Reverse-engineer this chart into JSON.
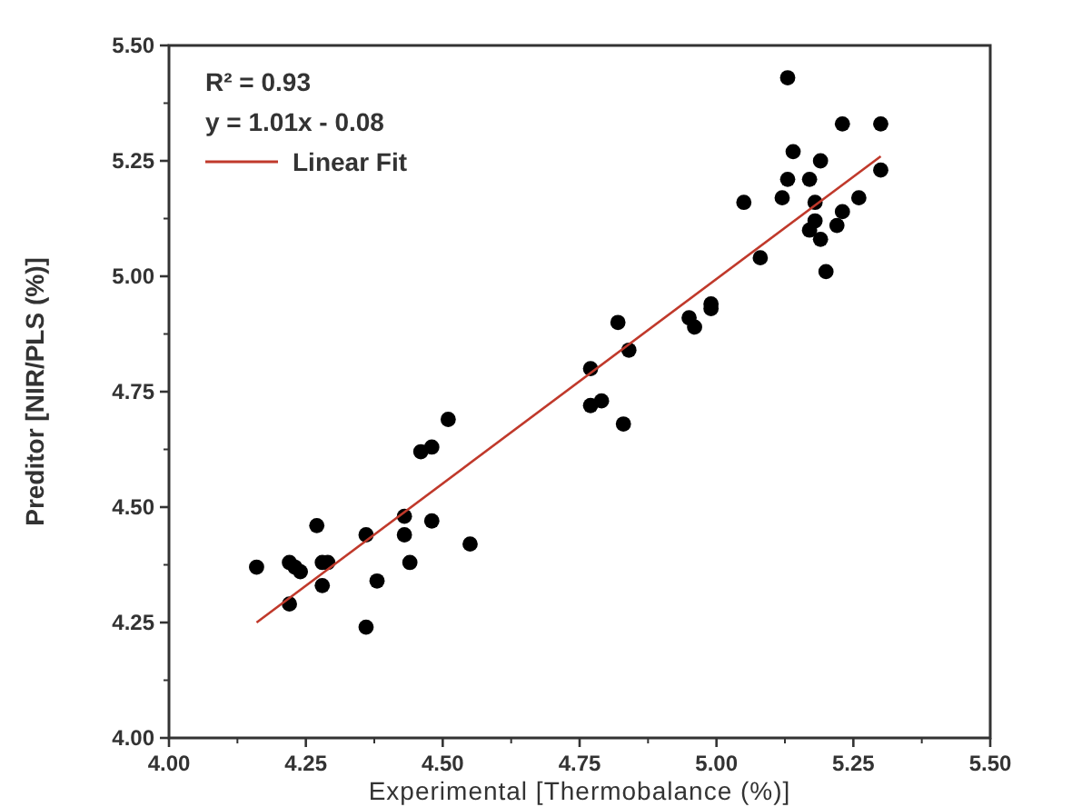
{
  "chart_data": {
    "type": "scatter",
    "xlabel": "Experimental [Thermobalance (%)]",
    "ylabel": "Preditor [NIR/PLS (%)]",
    "xlim": [
      4.0,
      5.5
    ],
    "xticks": [
      {
        "value": 4,
        "label": "4.00"
      },
      {
        "value": 4.25,
        "label": "4.25"
      },
      {
        "value": 4.5,
        "label": "4.50"
      },
      {
        "value": 4.75,
        "label": "4.75"
      },
      {
        "value": 5,
        "label": "5.00"
      },
      {
        "value": 5.25,
        "label": "5.25"
      },
      {
        "value": 5.5,
        "label": "5.50"
      }
    ],
    "ylim": [
      4.0,
      5.5
    ],
    "yticks": [
      {
        "value": 4,
        "label": "4.00"
      },
      {
        "value": 4.25,
        "label": "4.25"
      },
      {
        "value": 4.5,
        "label": "4.50"
      },
      {
        "value": 4.75,
        "label": "4.75"
      },
      {
        "value": 5,
        "label": "5.00"
      },
      {
        "value": 5.25,
        "label": "5.25"
      },
      {
        "value": 5.5,
        "label": "5.50"
      }
    ],
    "annotations": [
      "R² = 0.93",
      "y = 1.01x - 0.08"
    ],
    "legend": "top left",
    "grid": false,
    "series": [
      {
        "type": "scatter",
        "color": "#000000",
        "marker": "circle",
        "x": [
          5.13,
          5.23,
          5.3,
          5.14,
          5.19,
          5.13,
          5.17,
          5.05,
          5.12,
          5.3,
          5.26,
          5.18,
          5.23,
          5.18,
          5.22,
          5.17,
          5.19,
          5.08,
          5.2,
          4.99,
          4.82,
          4.84,
          4.77,
          4.79,
          4.77,
          4.83,
          4.95,
          4.96,
          4.99,
          4.16,
          4.22,
          4.23,
          4.24,
          4.22,
          4.27,
          4.28,
          4.29,
          4.28,
          4.36,
          4.36,
          4.38,
          4.43,
          4.43,
          4.44,
          4.48,
          4.55,
          4.46,
          4.48,
          4.51
        ],
        "values": [
          5.43,
          5.33,
          5.33,
          5.27,
          5.25,
          5.21,
          5.21,
          5.16,
          5.17,
          5.23,
          5.17,
          5.16,
          5.14,
          5.12,
          5.11,
          5.1,
          5.08,
          5.04,
          5.01,
          4.94,
          4.9,
          4.84,
          4.8,
          4.73,
          4.72,
          4.68,
          4.91,
          4.89,
          4.93,
          4.37,
          4.38,
          4.37,
          4.36,
          4.29,
          4.46,
          4.38,
          4.38,
          4.33,
          4.24,
          4.44,
          4.34,
          4.48,
          4.44,
          4.38,
          4.47,
          4.42,
          4.62,
          4.63,
          4.69
        ]
      },
      {
        "type": "line",
        "name": "Linear Fit",
        "color": "#c0392b",
        "marker": "none",
        "x": [
          4.16,
          5.3
        ],
        "values": [
          4.25,
          5.26
        ]
      }
    ]
  }
}
